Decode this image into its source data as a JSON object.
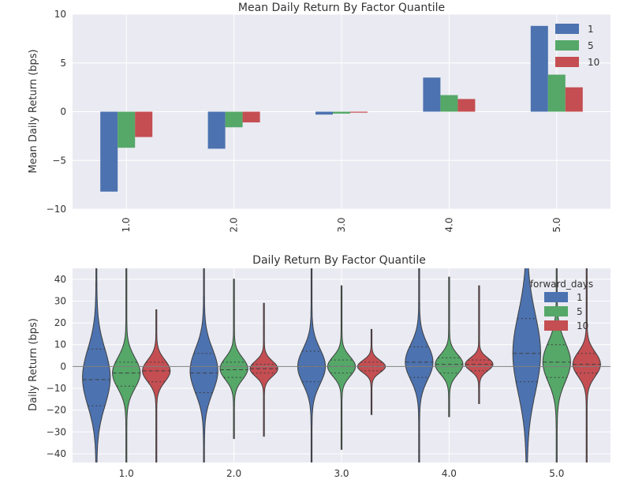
{
  "colors": {
    "plot_background": "#eaeaf2",
    "grid": "#ffffff",
    "series": [
      "#4c72b0",
      "#55a868",
      "#c44e52"
    ]
  },
  "chart_data": [
    {
      "type": "bar",
      "title": "Mean Daily Return By Factor Quantile",
      "xlabel": "",
      "ylabel": "Mean Daily Return (bps)",
      "categories": [
        "1.0",
        "2.0",
        "3.0",
        "4.0",
        "5.0"
      ],
      "ylim": [
        -10,
        10
      ],
      "yticks": [
        -10,
        -5,
        0,
        5,
        10
      ],
      "ytick_labels": [
        "−10",
        "−5",
        "0",
        "5",
        "10"
      ],
      "grid": true,
      "legend": {
        "placement": "top-right",
        "title": ""
      },
      "series": [
        {
          "name": "1",
          "values": [
            -8.2,
            -3.8,
            -0.3,
            3.5,
            8.8
          ]
        },
        {
          "name": "5",
          "values": [
            -3.7,
            -1.6,
            -0.2,
            1.7,
            3.8
          ]
        },
        {
          "name": "10",
          "values": [
            -2.6,
            -1.1,
            -0.1,
            1.3,
            2.5
          ]
        }
      ]
    },
    {
      "type": "violin",
      "title": "Daily Return By Factor Quantile",
      "xlabel": "",
      "ylabel": "Daily Return (bps)",
      "categories": [
        "1.0",
        "2.0",
        "3.0",
        "4.0",
        "5.0"
      ],
      "ylim": [
        -44,
        45
      ],
      "yticks": [
        -40,
        -30,
        -20,
        -10,
        0,
        10,
        20,
        30,
        40
      ],
      "ytick_labels": [
        "−40",
        "−30",
        "−20",
        "−10",
        "0",
        "10",
        "20",
        "30",
        "40"
      ],
      "grid": true,
      "zero_line": true,
      "legend": {
        "placement": "top-right",
        "title": "forward_days"
      },
      "series": [
        {
          "name": "1",
          "distributions": [
            {
              "min": -48,
              "max": 48,
              "mode": -5,
              "q1": -18,
              "median": -6,
              "q3": 8,
              "sd": 13
            },
            {
              "min": -48,
              "max": 48,
              "mode": -2,
              "q1": -12,
              "median": -3,
              "q3": 6,
              "sd": 10
            },
            {
              "min": -48,
              "max": 48,
              "mode": 0,
              "q1": -7,
              "median": 0,
              "q3": 7,
              "sd": 8
            },
            {
              "min": -48,
              "max": 48,
              "mode": 2,
              "q1": -5,
              "median": 2,
              "q3": 9,
              "sd": 8
            },
            {
              "min": -48,
              "max": 48,
              "mode": 6,
              "q1": -7,
              "median": 6,
              "q3": 22,
              "sd": 18
            }
          ]
        },
        {
          "name": "5",
          "distributions": [
            {
              "min": -48,
              "max": 48,
              "mode": -3,
              "q1": -9,
              "median": -3,
              "q3": 2,
              "sd": 7
            },
            {
              "min": -33,
              "max": 40,
              "mode": -1,
              "q1": -5,
              "median": -1.5,
              "q3": 2,
              "sd": 5
            },
            {
              "min": -38,
              "max": 37,
              "mode": 0,
              "q1": -3,
              "median": 0,
              "q3": 3,
              "sd": 4.5
            },
            {
              "min": -23,
              "max": 41,
              "mode": 1,
              "q1": -3,
              "median": 1,
              "q3": 4,
              "sd": 4.5
            },
            {
              "min": -48,
              "max": 48,
              "mode": 2,
              "q1": -5,
              "median": 2,
              "q3": 10,
              "sd": 9
            }
          ]
        },
        {
          "name": "10",
          "distributions": [
            {
              "min": -48,
              "max": 26,
              "mode": -2,
              "q1": -7,
              "median": -2,
              "q3": 2,
              "sd": 5
            },
            {
              "min": -32,
              "max": 29,
              "mode": -1,
              "q1": -3,
              "median": -1,
              "q3": 1,
              "sd": 3.5
            },
            {
              "min": -22,
              "max": 17,
              "mode": 0,
              "q1": -2,
              "median": 0,
              "q3": 2,
              "sd": 2.8
            },
            {
              "min": -17,
              "max": 37,
              "mode": 1,
              "q1": -2,
              "median": 1,
              "q3": 3,
              "sd": 3
            },
            {
              "min": -48,
              "max": 48,
              "mode": 1,
              "q1": -3,
              "median": 1,
              "q3": 6,
              "sd": 5.5
            }
          ]
        }
      ]
    }
  ]
}
